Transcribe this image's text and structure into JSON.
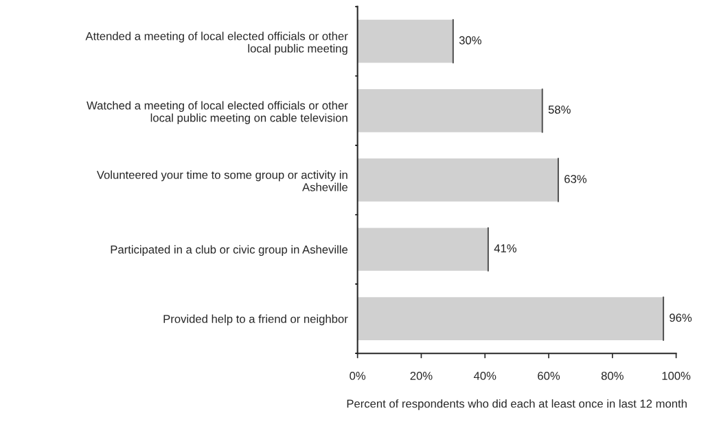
{
  "chart_data": {
    "type": "bar",
    "orientation": "horizontal",
    "categories": [
      "Attended a meeting of local elected officials or other\nlocal public meeting",
      "Watched a meeting of local elected officials or other\nlocal public meeting on cable television",
      "Volunteered your time to some group or activity in\nAsheville",
      "Participated in a club or civic group in Asheville",
      "Provided help to a friend or neighbor"
    ],
    "values": [
      30,
      58,
      63,
      41,
      96
    ],
    "value_labels": [
      "30%",
      "58%",
      "63%",
      "41%",
      "96%"
    ],
    "color": "#d0d0d0",
    "xlim": [
      0,
      100
    ],
    "xticks": [
      {
        "value": 0,
        "label": "0%"
      },
      {
        "value": 20,
        "label": "20%"
      },
      {
        "value": 40,
        "label": "40%"
      },
      {
        "value": 60,
        "label": "60%"
      },
      {
        "value": 80,
        "label": "80%"
      },
      {
        "value": 100,
        "label": "100%"
      }
    ],
    "xlabel": "Percent of respondents who did each at least once in last 12 month",
    "grid": false
  }
}
